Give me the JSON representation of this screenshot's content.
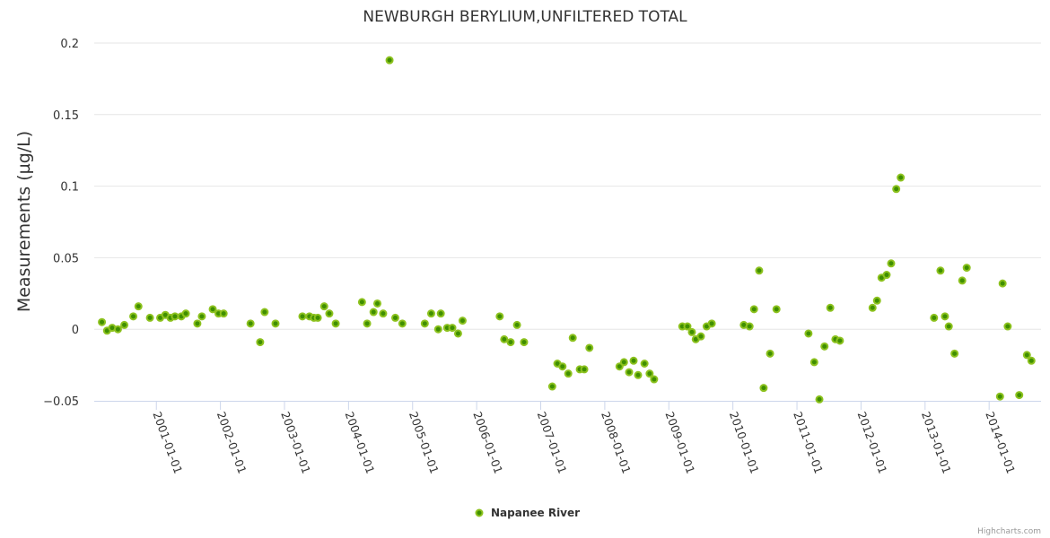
{
  "chart_data": {
    "type": "scatter",
    "title": "NEWBURGH BERYLIUM,UNFILTERED TOTAL",
    "xlabel": "",
    "ylabel": "Measurements (µg/L)",
    "x_unit": "decimal year",
    "xlim": [
      2000.03,
      2014.81
    ],
    "ylim": [
      -0.05,
      0.2
    ],
    "yticks": [
      -0.05,
      0,
      0.05,
      0.1,
      0.15,
      0.2
    ],
    "ytick_labels": [
      "−0.05",
      "0",
      "0.05",
      "0.1",
      "0.15",
      "0.2"
    ],
    "xticks": [
      2001,
      2002,
      2003,
      2004,
      2005,
      2006,
      2007,
      2008,
      2009,
      2010,
      2011,
      2012,
      2013,
      2014
    ],
    "xtick_labels": [
      "2001-01-01",
      "2002-01-01",
      "2003-01-01",
      "2004-01-01",
      "2005-01-01",
      "2006-01-01",
      "2007-01-01",
      "2008-01-01",
      "2009-01-01",
      "2010-01-01",
      "2011-01-01",
      "2012-01-01",
      "2013-01-01",
      "2014-01-01"
    ],
    "grid": true,
    "legend_position": "bottom-center",
    "series": [
      {
        "name": "Napanee River",
        "color": "#3f8f00",
        "border_color": "#8dc21f",
        "points": [
          [
            2000.15,
            0.005
          ],
          [
            2000.23,
            -0.001
          ],
          [
            2000.31,
            0.001
          ],
          [
            2000.4,
            0.0
          ],
          [
            2000.5,
            0.003
          ],
          [
            2000.64,
            0.009
          ],
          [
            2000.72,
            0.016
          ],
          [
            2000.9,
            0.008
          ],
          [
            2001.06,
            0.008
          ],
          [
            2001.14,
            0.01
          ],
          [
            2001.22,
            0.008
          ],
          [
            2001.29,
            0.009
          ],
          [
            2001.39,
            0.009
          ],
          [
            2001.46,
            0.011
          ],
          [
            2001.64,
            0.004
          ],
          [
            2001.71,
            0.009
          ],
          [
            2001.88,
            0.014
          ],
          [
            2001.97,
            0.011
          ],
          [
            2002.05,
            0.011
          ],
          [
            2002.47,
            0.004
          ],
          [
            2002.62,
            -0.009
          ],
          [
            2002.69,
            0.012
          ],
          [
            2002.86,
            0.004
          ],
          [
            2003.28,
            0.009
          ],
          [
            2003.39,
            0.009
          ],
          [
            2003.46,
            0.008
          ],
          [
            2003.52,
            0.008
          ],
          [
            2003.62,
            0.016
          ],
          [
            2003.7,
            0.011
          ],
          [
            2003.8,
            0.004
          ],
          [
            2004.21,
            0.019
          ],
          [
            2004.29,
            0.004
          ],
          [
            2004.39,
            0.012
          ],
          [
            2004.45,
            0.018
          ],
          [
            2004.54,
            0.011
          ],
          [
            2004.64,
            0.188
          ],
          [
            2004.73,
            0.008
          ],
          [
            2004.84,
            0.004
          ],
          [
            2005.19,
            0.004
          ],
          [
            2005.29,
            0.011
          ],
          [
            2005.4,
            0.0
          ],
          [
            2005.44,
            0.011
          ],
          [
            2005.54,
            0.001
          ],
          [
            2005.62,
            0.001
          ],
          [
            2005.71,
            -0.003
          ],
          [
            2005.78,
            0.006
          ],
          [
            2006.36,
            0.009
          ],
          [
            2006.43,
            -0.007
          ],
          [
            2006.53,
            -0.009
          ],
          [
            2006.63,
            0.003
          ],
          [
            2006.74,
            -0.009
          ],
          [
            2007.18,
            -0.04
          ],
          [
            2007.26,
            -0.024
          ],
          [
            2007.34,
            -0.026
          ],
          [
            2007.43,
            -0.031
          ],
          [
            2007.5,
            -0.006
          ],
          [
            2007.61,
            -0.028
          ],
          [
            2007.68,
            -0.028
          ],
          [
            2007.76,
            -0.013
          ],
          [
            2008.23,
            -0.026
          ],
          [
            2008.3,
            -0.023
          ],
          [
            2008.38,
            -0.03
          ],
          [
            2008.45,
            -0.022
          ],
          [
            2008.52,
            -0.032
          ],
          [
            2008.62,
            -0.024
          ],
          [
            2008.7,
            -0.031
          ],
          [
            2008.77,
            -0.035
          ],
          [
            2009.21,
            0.002
          ],
          [
            2009.29,
            0.002
          ],
          [
            2009.36,
            -0.002
          ],
          [
            2009.42,
            -0.007
          ],
          [
            2009.5,
            -0.005
          ],
          [
            2009.59,
            0.002
          ],
          [
            2009.67,
            0.004
          ],
          [
            2010.17,
            0.003
          ],
          [
            2010.26,
            0.002
          ],
          [
            2010.33,
            0.014
          ],
          [
            2010.41,
            0.041
          ],
          [
            2010.48,
            -0.041
          ],
          [
            2010.58,
            -0.017
          ],
          [
            2010.68,
            0.014
          ],
          [
            2011.18,
            -0.003
          ],
          [
            2011.27,
            -0.023
          ],
          [
            2011.35,
            -0.049
          ],
          [
            2011.43,
            -0.012
          ],
          [
            2011.52,
            0.015
          ],
          [
            2011.6,
            -0.007
          ],
          [
            2011.67,
            -0.008
          ],
          [
            2012.18,
            0.015
          ],
          [
            2012.25,
            0.02
          ],
          [
            2012.32,
            0.036
          ],
          [
            2012.4,
            0.038
          ],
          [
            2012.47,
            0.046
          ],
          [
            2012.55,
            0.098
          ],
          [
            2012.62,
            0.106
          ],
          [
            2013.14,
            0.008
          ],
          [
            2013.24,
            0.041
          ],
          [
            2013.31,
            0.009
          ],
          [
            2013.37,
            0.002
          ],
          [
            2013.46,
            -0.017
          ],
          [
            2013.58,
            0.034
          ],
          [
            2013.65,
            0.043
          ],
          [
            2014.17,
            -0.047
          ],
          [
            2014.21,
            0.032
          ],
          [
            2014.29,
            0.002
          ],
          [
            2014.47,
            -0.046
          ],
          [
            2014.59,
            -0.018
          ],
          [
            2014.66,
            -0.022
          ]
        ]
      }
    ],
    "credit": "Highcharts.com"
  }
}
